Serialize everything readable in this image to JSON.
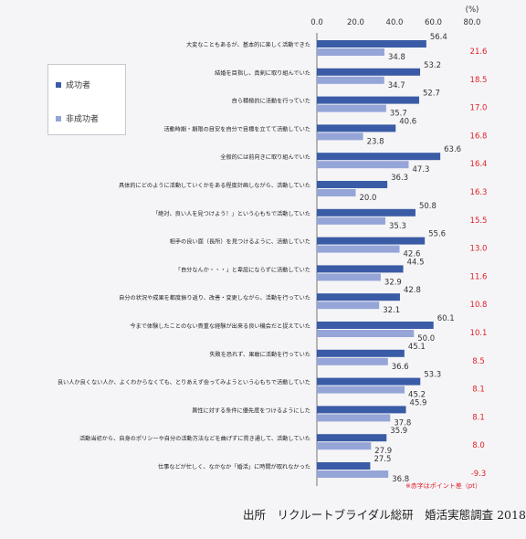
{
  "chart_data": {
    "type": "bar",
    "orientation": "horizontal",
    "unit": "(%)",
    "xlim": [
      0,
      80
    ],
    "ticks": [
      "0.0",
      "20.0",
      "40.0",
      "60.0",
      "80.0"
    ],
    "categories": [
      "大変なこともあるが、基本的に楽しく活動できた",
      "結婚を目指し、真剣に取り組んでいた",
      "自ら積極的に活動を行っていた",
      "活動時期・期限の目安を自分で目標を立てて活動していた",
      "全般的には前向きに取り組んでいた",
      "具体的にどのように活動していくかをある程度計画しながら、活動していた",
      "「絶対、良い人を見つけよう！」という心もちで活動していた",
      "相手の良い面（長所）を見つけるように、活動していた",
      "「自分なんか・・・」と卑屈にならずに活動していた",
      "自分の状況や成果を都度振り返り、改善・変更しながら、活動を行っていた",
      "今まで体験したことのない貴重な経験が出来る良い機会だと捉えていた",
      "失敗を恐れず、果敢に活動を行っていた",
      "良い人か良くない人か、よくわからなくても、とりあえず会ってみようという心もちで活動していた",
      "異性に対する条件に優先度をつけるようにした",
      "活動当初から、自身のポリシーや自分の活動方法などを曲げずに貫き通して、活動していた",
      "仕事などが忙しく、なかなか「婚活」に時間が取れなかった"
    ],
    "series": [
      {
        "name": "成功者",
        "color": "#3a5ba6",
        "values": [
          56.4,
          53.2,
          52.7,
          40.6,
          63.6,
          36.3,
          50.8,
          55.6,
          44.5,
          42.8,
          60.1,
          45.1,
          53.3,
          45.9,
          35.9,
          27.5
        ]
      },
      {
        "name": "非成功者",
        "color": "#95a5d8",
        "values": [
          34.8,
          34.7,
          35.7,
          23.8,
          47.3,
          20.0,
          35.3,
          42.6,
          32.9,
          32.1,
          50.0,
          36.6,
          45.2,
          37.8,
          27.9,
          36.8
        ]
      }
    ],
    "diffs": [
      "21.6",
      "18.5",
      "17.0",
      "16.8",
      "16.4",
      "16.3",
      "15.5",
      "13.0",
      "11.6",
      "10.8",
      "10.1",
      "8.5",
      "8.1",
      "8.1",
      "8.0",
      "-9.3"
    ],
    "diff_color": "#e0202a",
    "note": "※赤字はポイント差（pt）",
    "legend_position": "left",
    "grid": false
  },
  "source": "出所　リクルートブライダル総研　婚活実態調査 2018"
}
